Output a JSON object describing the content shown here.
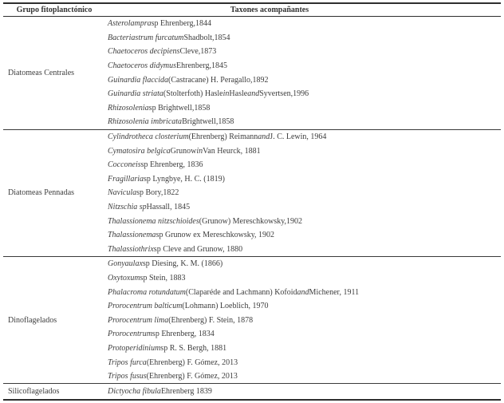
{
  "colors": {
    "text": "#3d3d3d",
    "rule": "#2e2e2e",
    "background": "#ffffff"
  },
  "table": {
    "header": {
      "col1": "Grupo fitoplanctónico",
      "col2": "Taxones acompañantes"
    },
    "sections": [
      {
        "group": "Diatomeas Centrales",
        "rows": [
          [
            {
              "t": "Asterolampra",
              "i": true
            },
            {
              "t": " sp Ehrenberg,1844",
              "i": false
            }
          ],
          [
            {
              "t": "Bacteriastrum furcatum",
              "i": true
            },
            {
              "t": " Shadbolt,1854",
              "i": false
            }
          ],
          [
            {
              "t": "Chaetoceros decipiens",
              "i": true
            },
            {
              "t": " Cleve,1873",
              "i": false
            }
          ],
          [
            {
              "t": "Chaetoceros didymus",
              "i": true
            },
            {
              "t": " Ehrenberg,1845",
              "i": false
            }
          ],
          [
            {
              "t": "Guinardia flaccida",
              "i": true
            },
            {
              "t": " (Castracane) H. Peragallo,1892",
              "i": false
            }
          ],
          [
            {
              "t": "Guinardia striata",
              "i": true
            },
            {
              "t": " (Stolterfoth) Hasle ",
              "i": false
            },
            {
              "t": "in",
              "i": true
            },
            {
              "t": " Hasle ",
              "i": false
            },
            {
              "t": "and",
              "i": true
            },
            {
              "t": " Syvertsen,1996",
              "i": false
            }
          ],
          [
            {
              "t": "Rhizosolenia",
              "i": true
            },
            {
              "t": " sp Brightwell,1858",
              "i": false
            }
          ],
          [
            {
              "t": "Rhizosolenia imbricata",
              "i": true
            },
            {
              "t": " Brightwell,1858",
              "i": false
            }
          ]
        ]
      },
      {
        "group": "Diatomeas Pennadas",
        "rows": [
          [
            {
              "t": "Cylindrotheca closterium",
              "i": true
            },
            {
              "t": " (Ehrenberg) Reimann ",
              "i": false
            },
            {
              "t": "and",
              "i": true
            },
            {
              "t": " J. C. Lewin, 1964",
              "i": false
            }
          ],
          [
            {
              "t": "Cymatosira belgica",
              "i": true
            },
            {
              "t": " Grunow ",
              "i": false
            },
            {
              "t": "in",
              "i": true
            },
            {
              "t": " Van Heurck, 1881",
              "i": false
            }
          ],
          [
            {
              "t": "Cocconeis",
              "i": true
            },
            {
              "t": " sp Ehrenberg, 1836",
              "i": false
            }
          ],
          [
            {
              "t": "Fragillaria",
              "i": true
            },
            {
              "t": " sp Lyngbye, H. C. (1819)",
              "i": false
            }
          ],
          [
            {
              "t": "Navicula",
              "i": true
            },
            {
              "t": " sp Bory,1822",
              "i": false
            }
          ],
          [
            {
              "t": "Nitzschia sp",
              "i": true
            },
            {
              "t": " Hassall, 1845",
              "i": false
            }
          ],
          [
            {
              "t": "Thalassionema nitzschioides",
              "i": true
            },
            {
              "t": " (Grunow) Mereschkowsky,1902",
              "i": false
            }
          ],
          [
            {
              "t": "Thalassionema",
              "i": true
            },
            {
              "t": " sp Grunow ex Mereschkowsky, 1902",
              "i": false
            }
          ],
          [
            {
              "t": "Thalassiothrix",
              "i": true
            },
            {
              "t": " sp Cleve and Grunow, 1880",
              "i": false
            }
          ]
        ]
      },
      {
        "group": "Dinoflagelados",
        "rows": [
          [
            {
              "t": "Gonyaulax",
              "i": true
            },
            {
              "t": " sp Diesing, K. M. (1866)",
              "i": false
            }
          ],
          [
            {
              "t": "Oxytoxum",
              "i": true
            },
            {
              "t": " sp Stein, 1883",
              "i": false
            }
          ],
          [
            {
              "t": "Phalacroma rotundatum",
              "i": true
            },
            {
              "t": " (Claparéde and Lachmann) Kofoid ",
              "i": false
            },
            {
              "t": "and",
              "i": true
            },
            {
              "t": " Michener, 1911",
              "i": false
            }
          ],
          [
            {
              "t": "Prorocentrum balticum",
              "i": true
            },
            {
              "t": " (Lohmann) Loeblich, 1970",
              "i": false
            }
          ],
          [
            {
              "t": "Prorocentrum lima",
              "i": true
            },
            {
              "t": " (Ehrenberg) F. Stein, 1878",
              "i": false
            }
          ],
          [
            {
              "t": "Prorocentrum",
              "i": true
            },
            {
              "t": " sp Ehrenberg, 1834",
              "i": false
            }
          ],
          [
            {
              "t": "Protoperidinium",
              "i": true
            },
            {
              "t": " sp R. S. Bergh, 1881",
              "i": false
            }
          ],
          [
            {
              "t": "Tripos furca",
              "i": true
            },
            {
              "t": " (Ehrenberg) F. Gómez, 2013",
              "i": false
            }
          ],
          [
            {
              "t": "Tripos fusus",
              "i": true
            },
            {
              "t": " (Ehrenberg) F. Gómez, 2013",
              "i": false
            }
          ]
        ]
      },
      {
        "group": "Silicoflagelados",
        "rows": [
          [
            {
              "t": "Dictyocha fibula",
              "i": true
            },
            {
              "t": " Ehrenberg 1839",
              "i": false
            }
          ]
        ]
      }
    ]
  }
}
